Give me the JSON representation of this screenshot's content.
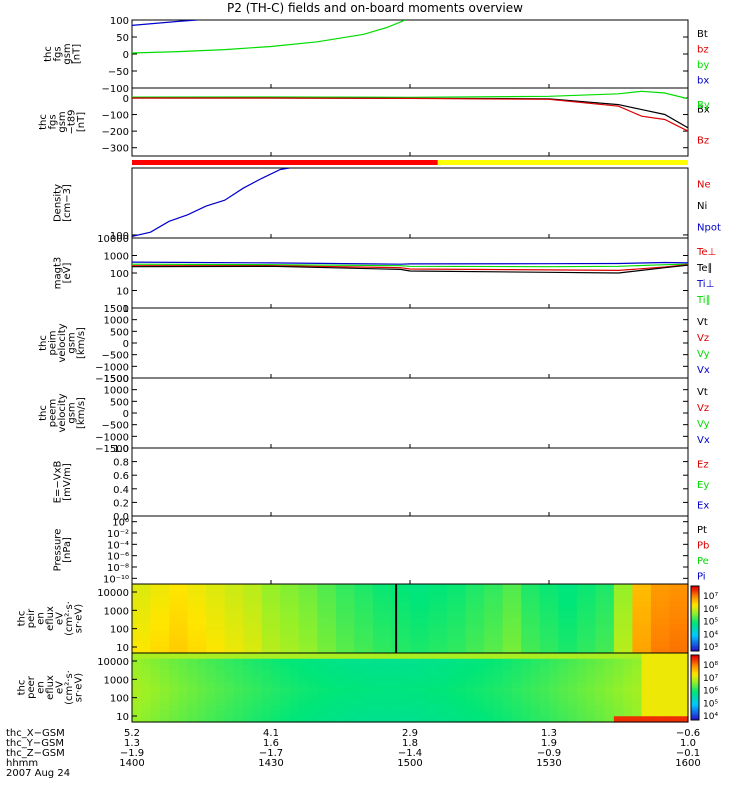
{
  "title": "P2 (TH-C) fields and on-board moments overview",
  "colors": {
    "black": "#000000",
    "red": "#dd0000",
    "green": "#00dd00",
    "blue": "#0000cc",
    "yellow": "#ffff00",
    "barred": "#ff0000"
  },
  "chart_data": {
    "type": "line",
    "panels": [
      {
        "id": "fgs",
        "ylabel": [
          "thc",
          "fgs",
          "gsm",
          "[nT]"
        ],
        "ticks": [
          "100",
          "50",
          "0",
          "−50",
          "−100"
        ],
        "tick_values": [
          100,
          50,
          0,
          -50,
          -100
        ],
        "ylim": [
          -100,
          100
        ],
        "legend": [
          {
            "label": "Bt",
            "color": "#000000"
          },
          {
            "label": "bz",
            "color": "#dd0000"
          },
          {
            "label": "by",
            "color": "#00dd00"
          },
          {
            "label": "bx",
            "color": "#0000cc"
          }
        ],
        "series": [
          {
            "name": "by",
            "color": "#00dd00",
            "x": [
              1400,
              1410,
              1420,
              1430,
              1440,
              1450,
              1455,
              1459
            ],
            "y": [
              3,
              7,
              13,
              22,
              36,
              58,
              78,
              100
            ]
          },
          {
            "name": "bx",
            "color": "#0000cc",
            "x": [
              1400,
              1405,
              1410,
              1414
            ],
            "y": [
              84,
              90,
              96,
              100
            ]
          }
        ]
      },
      {
        "id": "fgs_t89",
        "ylabel": [
          "thc",
          "fgs",
          "gsm",
          "−t89",
          "[nT]"
        ],
        "ticks": [
          "0",
          "−100",
          "−200",
          "−300"
        ],
        "tick_values": [
          0,
          -100,
          -200,
          -300
        ],
        "ylim": [
          -350,
          60
        ],
        "legend": [
          {
            "label": "Bx",
            "color": "#000000"
          },
          {
            "label": "Bz",
            "color": "#dd0000"
          }
        ],
        "overlay_label": {
          "label": "By",
          "color": "#00dd00"
        },
        "series": [
          {
            "name": "By",
            "color": "#00dd00",
            "x": [
              1400,
              1430,
              1500,
              1530,
              1545,
              1550,
              1555,
              1600
            ],
            "y": [
              5,
              6,
              4,
              10,
              25,
              40,
              30,
              -5
            ]
          },
          {
            "name": "Bx",
            "color": "#000000",
            "x": [
              1400,
              1430,
              1500,
              1530,
              1545,
              1550,
              1555,
              1600
            ],
            "y": [
              0,
              0,
              -2,
              -5,
              -40,
              -70,
              -100,
              -180
            ]
          },
          {
            "name": "Bz",
            "color": "#dd0000",
            "x": [
              1400,
              1430,
              1500,
              1530,
              1545,
              1550,
              1555,
              1600
            ],
            "y": [
              0,
              0,
              -3,
              -8,
              -50,
              -110,
              -130,
              -200
            ]
          }
        ]
      },
      {
        "id": "density",
        "ylabel": [
          "Density",
          "[cm−3]"
        ],
        "ticks": [
          "100"
        ],
        "tick_values": [
          100
        ],
        "ylim": [
          90,
          1000
        ],
        "log": true,
        "legend": [
          {
            "label": "Ne",
            "color": "#dd0000"
          },
          {
            "label": "Ni",
            "color": "#000000"
          },
          {
            "label": "Npot",
            "color": "#0000cc"
          }
        ],
        "series": [
          {
            "name": "Npot",
            "color": "#0000cc",
            "x": [
              1400,
              1404,
              1408,
              1412,
              1416,
              1420,
              1424,
              1428,
              1432,
              1434
            ],
            "y": [
              95,
              110,
              160,
              200,
              270,
              330,
              500,
              700,
              950,
              1000
            ]
          }
        ]
      },
      {
        "id": "temperature",
        "ylabel": [
          "magt3",
          "[eV]"
        ],
        "ticks": [
          "10000",
          "1000",
          "100",
          "10",
          "1"
        ],
        "tick_values": [
          10000,
          1000,
          100,
          10,
          1
        ],
        "ylim": [
          1,
          10000
        ],
        "log": true,
        "legend": [
          {
            "label": "Te⊥",
            "color": "#dd0000"
          },
          {
            "label": "Te∥",
            "color": "#000000"
          },
          {
            "label": "Ti⊥",
            "color": "#0000cc"
          },
          {
            "label": "Ti∥",
            "color": "#00dd00"
          }
        ],
        "series": [
          {
            "name": "Ti⊥",
            "color": "#0000cc",
            "x": [
              1400,
              1430,
              1458,
              1500,
              1530,
              1545,
              1555,
              1600
            ],
            "y": [
              420,
              380,
              320,
              330,
              340,
              350,
              400,
              380
            ]
          },
          {
            "name": "Ti∥",
            "color": "#00dd00",
            "x": [
              1400,
              1430,
              1458,
              1500,
              1530,
              1545,
              1555,
              1600
            ],
            "y": [
              320,
              300,
              260,
              240,
              230,
              240,
              300,
              320
            ]
          },
          {
            "name": "Te⊥",
            "color": "#dd0000",
            "x": [
              1400,
              1430,
              1458,
              1500,
              1530,
              1545,
              1555,
              1600
            ],
            "y": [
              260,
              260,
              200,
              170,
              150,
              140,
              220,
              300
            ]
          },
          {
            "name": "Te∥",
            "color": "#000000",
            "x": [
              1400,
              1430,
              1458,
              1500,
              1530,
              1545,
              1555,
              1600
            ],
            "y": [
              230,
              240,
              160,
              130,
              110,
              100,
              200,
              280
            ]
          }
        ]
      },
      {
        "id": "peim",
        "ylabel": [
          "thc",
          "peim",
          "velocity",
          "gsm",
          "[km/s]"
        ],
        "ticks": [
          "1500",
          "1000",
          "500",
          "0",
          "−500",
          "−1000",
          "−1500"
        ],
        "tick_values": [
          1500,
          1000,
          500,
          0,
          -500,
          -1000,
          -1500
        ],
        "ylim": [
          -1500,
          1500
        ],
        "legend": [
          {
            "label": "Vt",
            "color": "#000000"
          },
          {
            "label": "Vz",
            "color": "#dd0000"
          },
          {
            "label": "Vy",
            "color": "#00dd00"
          },
          {
            "label": "Vx",
            "color": "#0000cc"
          }
        ]
      },
      {
        "id": "peem",
        "ylabel": [
          "thc",
          "peem",
          "velocity",
          "gsm",
          "[km/s]"
        ],
        "ticks": [
          "1500",
          "1000",
          "500",
          "0",
          "−500",
          "−1000",
          "−1500"
        ],
        "tick_values": [
          1500,
          1000,
          500,
          0,
          -500,
          -1000,
          -1500
        ],
        "ylim": [
          -1500,
          1500
        ],
        "legend": [
          {
            "label": "Vt",
            "color": "#000000"
          },
          {
            "label": "Vz",
            "color": "#dd0000"
          },
          {
            "label": "Vy",
            "color": "#00dd00"
          },
          {
            "label": "Vx",
            "color": "#0000cc"
          }
        ]
      },
      {
        "id": "efield",
        "ylabel": [
          "E=−VxB",
          "[mV/m]"
        ],
        "ticks": [
          "1.0",
          "0.8",
          "0.6",
          "0.4",
          "0.2",
          "0.0"
        ],
        "tick_values": [
          1.0,
          0.8,
          0.6,
          0.4,
          0.2,
          0.0
        ],
        "ylim": [
          0,
          1
        ],
        "legend": [
          {
            "label": "Ez",
            "color": "#dd0000"
          },
          {
            "label": "Ey",
            "color": "#00dd00"
          },
          {
            "label": "Ex",
            "color": "#0000cc"
          }
        ]
      },
      {
        "id": "pressure",
        "ylabel": [
          "Pressure",
          "[nPa]"
        ],
        "ticks": [
          "10⁰",
          "10⁻²",
          "10⁻⁴",
          "10⁻⁶",
          "10⁻⁸",
          "10⁻¹⁰"
        ],
        "tick_values": [
          0,
          -2,
          -4,
          -6,
          -8,
          -10
        ],
        "ylim": [
          -11,
          1
        ],
        "legend": [
          {
            "label": "Pt",
            "color": "#000000"
          },
          {
            "label": "Pb",
            "color": "#dd0000"
          },
          {
            "label": "Pe",
            "color": "#00dd00"
          },
          {
            "label": "Pi",
            "color": "#0000cc"
          }
        ]
      }
    ],
    "spectrograms": [
      {
        "id": "peir",
        "ylabel": [
          "thc",
          "peir",
          "en",
          "eflux",
          "eV",
          "(cm²·s·",
          "sr·eV)"
        ],
        "ticks": [
          "10000",
          "1000",
          "100",
          "10"
        ],
        "colorbar_ticks": [
          "10⁷",
          "10⁶",
          "10⁵",
          "10⁴",
          "10³"
        ],
        "column_levels": [
          0.7,
          0.72,
          0.74,
          0.72,
          0.7,
          0.68,
          0.66,
          0.62,
          0.6,
          0.58,
          0.55,
          0.52,
          0.5,
          0.48,
          0.47,
          0.46,
          0.47,
          0.48,
          0.5,
          0.52,
          0.55,
          0.5,
          0.48,
          0.46,
          0.48,
          0.5,
          0.62,
          0.8,
          0.85,
          0.86
        ],
        "spike_x": 1457
      },
      {
        "id": "peer",
        "ylabel": [
          "thc",
          "peer",
          "en",
          "eflux",
          "eV",
          "(cm²·s·",
          "sr·eV)"
        ],
        "ticks": [
          "10000",
          "1000",
          "100",
          "10"
        ],
        "colorbar_ticks": [
          "10⁸",
          "10⁷",
          "10⁶",
          "10⁵",
          "10⁴"
        ]
      }
    ],
    "time_axis": {
      "xlim": [
        1400,
        1600
      ],
      "rows": [
        {
          "label": "thc_X−GSM",
          "values": [
            "5.2",
            "4.1",
            "2.9",
            "1.3",
            "−0.6"
          ]
        },
        {
          "label": "thc_Y−GSM",
          "values": [
            "1.3",
            "1.6",
            "1.8",
            "1.9",
            "1.0"
          ]
        },
        {
          "label": "thc_Z−GSM",
          "values": [
            "−1.9",
            "−1.7",
            "−1.4",
            "−0.9",
            "−0.1"
          ]
        },
        {
          "label": "hhmm",
          "values": [
            "1400",
            "1430",
            "1500",
            "1530",
            "1600"
          ]
        }
      ],
      "date": "2007 Aug 24"
    },
    "mode_bar": [
      {
        "from": 1400,
        "to": 1466,
        "color": "#ff0000"
      },
      {
        "from": 1466,
        "to": 1600,
        "color": "#ffff00"
      }
    ]
  }
}
